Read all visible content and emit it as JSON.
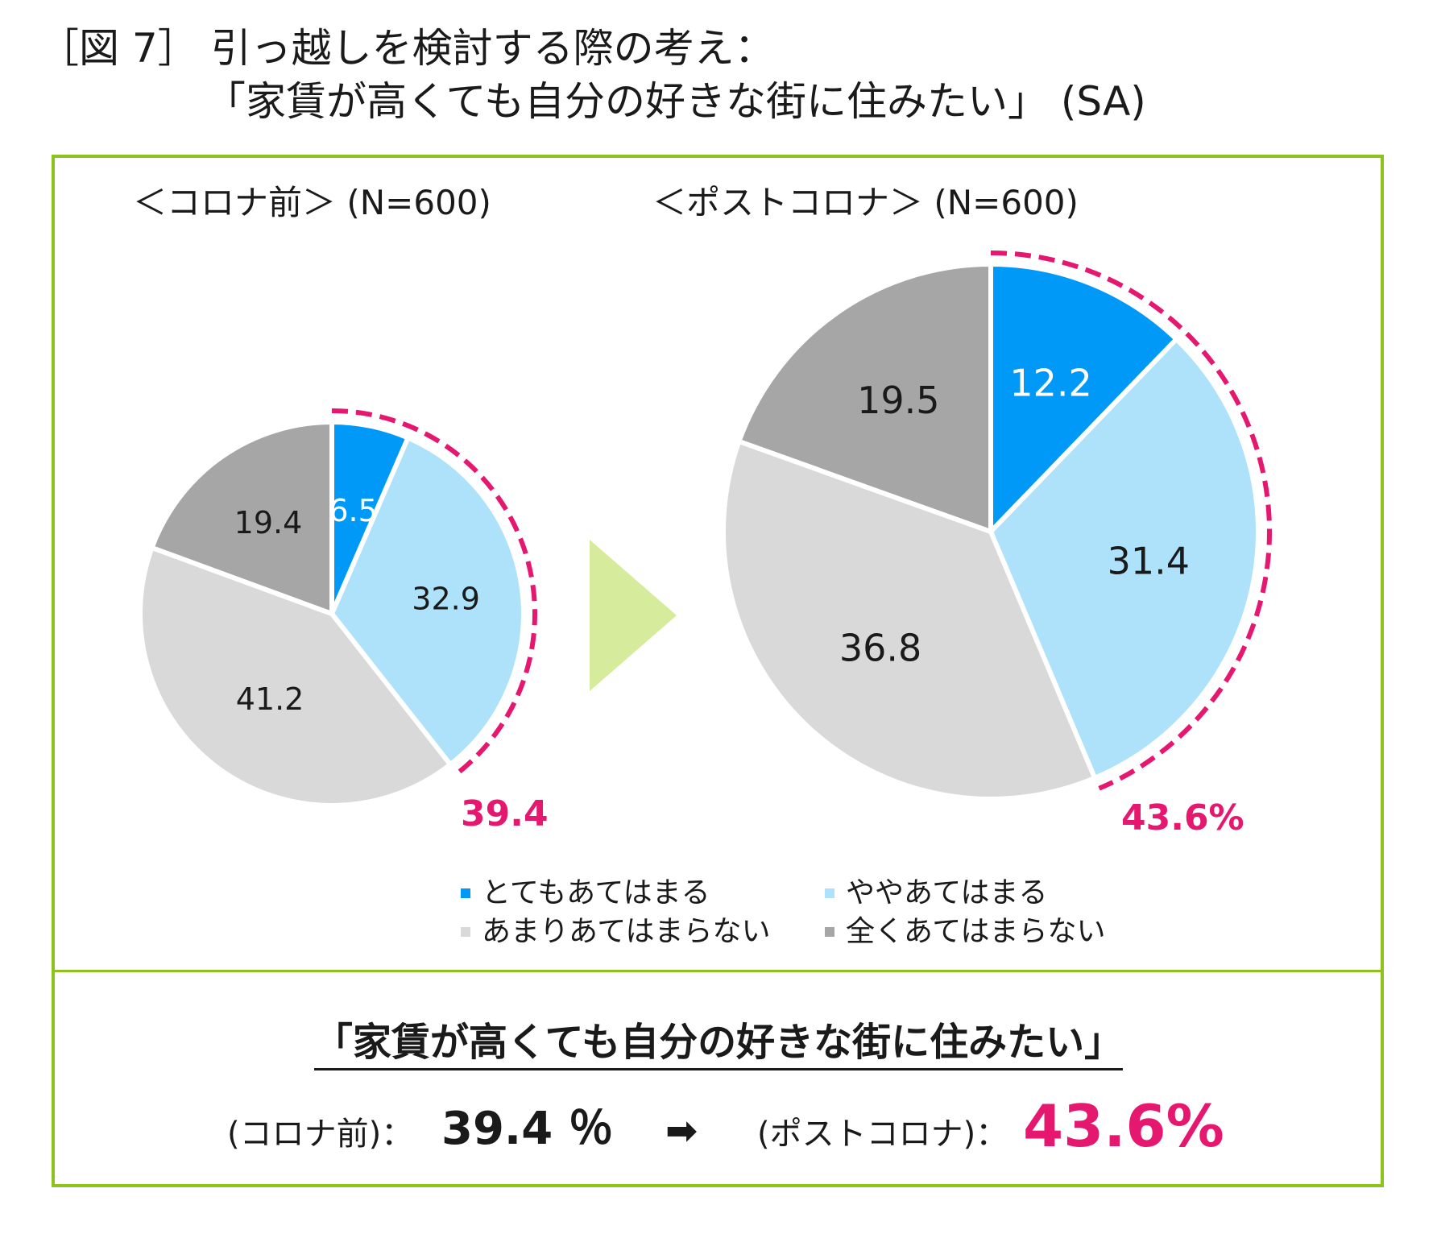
{
  "title": {
    "line1": "［図 7］ 引っ越しを検討する際の考え：",
    "line2": "「家賃が高くても自分の好きな街に住みたい」 (SA)"
  },
  "colors": {
    "frame": "#8dc21f",
    "arrow": "#d7eb9c",
    "highlight": "#e6176f",
    "s1": "#0099f7",
    "s2": "#aee2fb",
    "s3": "#d9d9d9",
    "s4": "#a6a6a6"
  },
  "chart_data": [
    {
      "type": "pie",
      "title": "＜コロナ前＞ (N=600)",
      "categories": [
        "とてもあてはまる",
        "ややあてはまる",
        "あまりあてはまらない",
        "全くあてはまらない"
      ],
      "values": [
        6.5,
        32.9,
        41.2,
        19.4
      ],
      "labels": [
        "6.5",
        "32.9",
        "41.2",
        "19.4"
      ],
      "highlight_total": "39.4"
    },
    {
      "type": "pie",
      "title": "＜ポストコロナ＞ (N=600)",
      "categories": [
        "とてもあてはまる",
        "ややあてはまる",
        "あまりあてはまらない",
        "全くあてはまらない"
      ],
      "values": [
        12.2,
        31.4,
        36.8,
        19.5
      ],
      "labels": [
        "12.2",
        "31.4",
        "36.8",
        "19.5"
      ],
      "highlight_total": "43.6%"
    }
  ],
  "legend": [
    "とてもあてはまる",
    "ややあてはまる",
    "あまりあてはまらない",
    "全くあてはまらない"
  ],
  "summary": {
    "title": "「家賃が高くても自分の好きな街に住みたい」",
    "before_label": "(コロナ前)：",
    "before_value": "39.4 ％",
    "arrow": "➡",
    "after_label": "(ポストコロナ)：",
    "after_value": "43.6%"
  }
}
